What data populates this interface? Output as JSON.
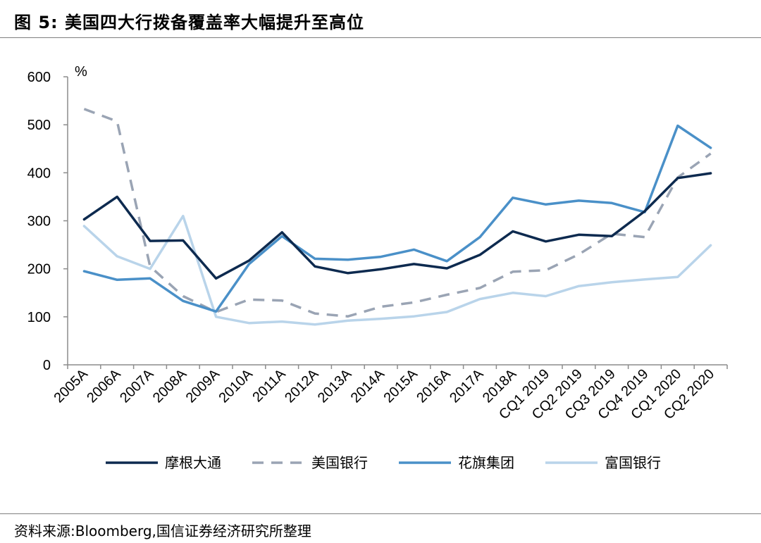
{
  "figure": {
    "title": "图 5:  美国四大行拨备覆盖率大幅提升至高位",
    "source": "资料来源:Bloomberg,国信证券经济研究所整理"
  },
  "chart_data": {
    "type": "line",
    "ylabel": "%",
    "ylim": [
      0,
      600
    ],
    "yticks": [
      0,
      100,
      200,
      300,
      400,
      500,
      600
    ],
    "categories": [
      "2005A",
      "2006A",
      "2007A",
      "2008A",
      "2009A",
      "2010A",
      "2011A",
      "2012A",
      "2013A",
      "2014A",
      "2015A",
      "2016A",
      "2017A",
      "2018A",
      "CQ1 2019",
      "CQ2 2019",
      "CQ3 2019",
      "CQ4 2019",
      "CQ1 2020",
      "CQ2 2020"
    ],
    "grid": false,
    "legend_position": "bottom",
    "series": [
      {
        "name": "摩根大通",
        "color": "#0d2a4f",
        "dash": "solid",
        "values": [
          303,
          350,
          258,
          259,
          180,
          217,
          276,
          205,
          191,
          199,
          210,
          201,
          229,
          278,
          257,
          271,
          268,
          320,
          389,
          399
        ]
      },
      {
        "name": "美国银行",
        "color": "#9aa4b4",
        "dash": "dashed",
        "values": [
          533,
          507,
          205,
          143,
          110,
          136,
          134,
          107,
          101,
          121,
          130,
          146,
          160,
          194,
          197,
          230,
          273,
          266,
          390,
          440
        ]
      },
      {
        "name": "花旗集团",
        "color": "#4a90c8",
        "dash": "solid",
        "values": [
          195,
          177,
          180,
          133,
          111,
          210,
          268,
          221,
          219,
          225,
          240,
          216,
          266,
          348,
          334,
          342,
          337,
          318,
          498,
          452
        ]
      },
      {
        "name": "富国银行",
        "color": "#b9d4ea",
        "dash": "solid",
        "values": [
          289,
          226,
          200,
          310,
          100,
          87,
          90,
          84,
          92,
          96,
          101,
          110,
          137,
          150,
          143,
          164,
          172,
          178,
          183,
          249
        ]
      }
    ]
  }
}
